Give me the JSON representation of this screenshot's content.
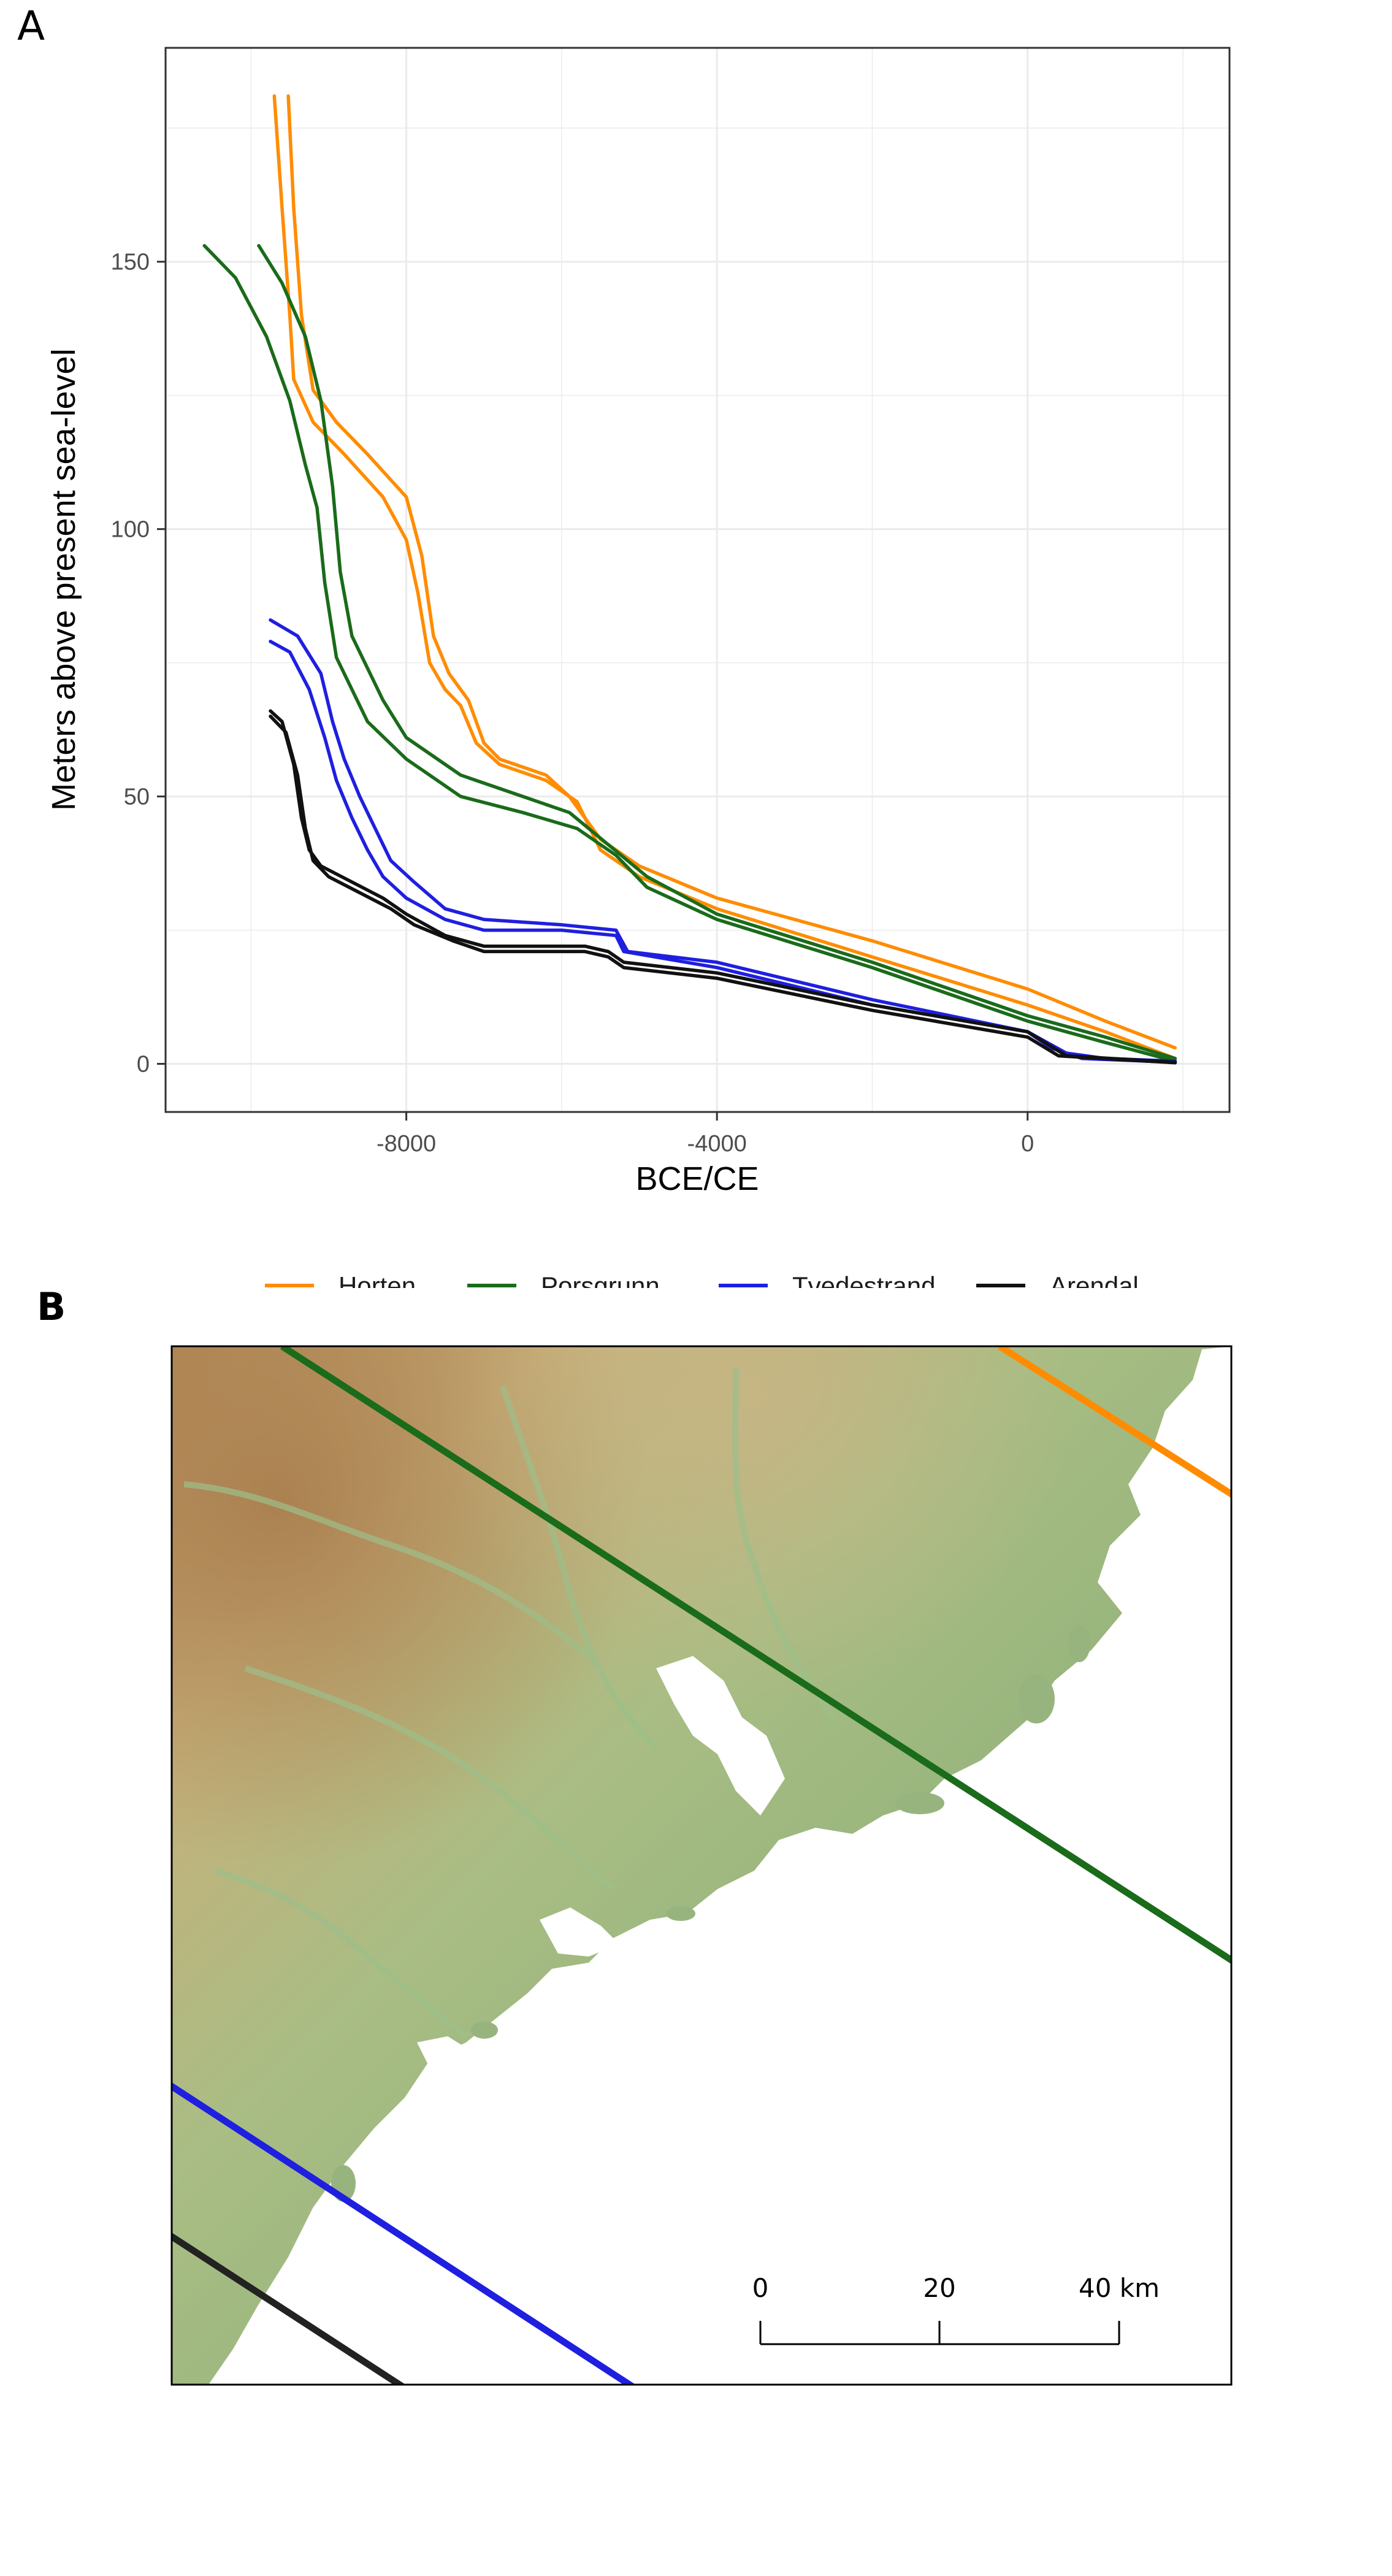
{
  "panels": {
    "a_label": "A",
    "b_label": "B"
  },
  "chart_data": {
    "type": "line",
    "title": "",
    "xlabel": "BCE/CE",
    "ylabel": "Meters above present sea-level",
    "xlim": [
      -11100,
      2600
    ],
    "ylim": [
      -9,
      190
    ],
    "xticks": [
      -8000,
      -4000,
      0
    ],
    "yticks": [
      0,
      50,
      100,
      150
    ],
    "grid": true,
    "legend_position": "bottom",
    "series": [
      {
        "name": "Horten",
        "color": "#ff8c00",
        "lines": [
          [
            [
              -9700,
              181
            ],
            [
              -9600,
              160
            ],
            [
              -9500,
              140
            ],
            [
              -9450,
              128
            ],
            [
              -9200,
              120
            ],
            [
              -8800,
              114
            ],
            [
              -8300,
              106
            ],
            [
              -8000,
              98
            ],
            [
              -7850,
              88
            ],
            [
              -7700,
              75
            ],
            [
              -7500,
              70
            ],
            [
              -7300,
              67
            ],
            [
              -7100,
              60
            ],
            [
              -6800,
              56
            ],
            [
              -6200,
              53
            ],
            [
              -5800,
              49
            ],
            [
              -5500,
              40
            ],
            [
              -5000,
              35
            ],
            [
              -4000,
              29
            ],
            [
              -2000,
              20
            ],
            [
              0,
              11
            ],
            [
              1000,
              6
            ],
            [
              1900,
              1
            ]
          ],
          [
            [
              -9520,
              181
            ],
            [
              -9450,
              160
            ],
            [
              -9350,
              140
            ],
            [
              -9200,
              126
            ],
            [
              -8900,
              120
            ],
            [
              -8500,
              114
            ],
            [
              -8000,
              106
            ],
            [
              -7800,
              95
            ],
            [
              -7650,
              80
            ],
            [
              -7450,
              73
            ],
            [
              -7200,
              68
            ],
            [
              -7000,
              60
            ],
            [
              -6800,
              57
            ],
            [
              -6200,
              54
            ],
            [
              -5900,
              50
            ],
            [
              -5500,
              42
            ],
            [
              -5000,
              37
            ],
            [
              -4000,
              31
            ],
            [
              -2000,
              23
            ],
            [
              0,
              14
            ],
            [
              1000,
              8
            ],
            [
              1900,
              3
            ]
          ]
        ]
      },
      {
        "name": "Porsgrunn",
        "color": "#1a6b1a",
        "lines": [
          [
            [
              -10600,
              153
            ],
            [
              -10200,
              147
            ],
            [
              -9800,
              136
            ],
            [
              -9500,
              124
            ],
            [
              -9300,
              112
            ],
            [
              -9150,
              104
            ],
            [
              -9050,
              90
            ],
            [
              -8900,
              76
            ],
            [
              -8500,
              64
            ],
            [
              -8000,
              57
            ],
            [
              -7300,
              50
            ],
            [
              -6500,
              47
            ],
            [
              -5800,
              44
            ],
            [
              -5300,
              39
            ],
            [
              -4900,
              33
            ],
            [
              -4000,
              27
            ],
            [
              -2000,
              18
            ],
            [
              0,
              8
            ],
            [
              1000,
              4
            ],
            [
              1900,
              0.5
            ]
          ],
          [
            [
              -9900,
              153
            ],
            [
              -9600,
              146
            ],
            [
              -9300,
              136
            ],
            [
              -9100,
              124
            ],
            [
              -8950,
              108
            ],
            [
              -8850,
              92
            ],
            [
              -8700,
              80
            ],
            [
              -8300,
              68
            ],
            [
              -8000,
              61
            ],
            [
              -7300,
              54
            ],
            [
              -6500,
              50
            ],
            [
              -5900,
              47
            ],
            [
              -5400,
              41
            ],
            [
              -4900,
              35
            ],
            [
              -4000,
              28
            ],
            [
              -2000,
              19
            ],
            [
              0,
              9
            ],
            [
              1000,
              5
            ],
            [
              1900,
              1
            ]
          ]
        ]
      },
      {
        "name": "Tvedestrand",
        "color": "#1f1fe0",
        "lines": [
          [
            [
              -9750,
              83
            ],
            [
              -9400,
              80
            ],
            [
              -9100,
              73
            ],
            [
              -8950,
              64
            ],
            [
              -8800,
              57
            ],
            [
              -8600,
              50
            ],
            [
              -8400,
              44
            ],
            [
              -8200,
              38
            ],
            [
              -7900,
              34
            ],
            [
              -7500,
              29
            ],
            [
              -7000,
              27
            ],
            [
              -6000,
              26
            ],
            [
              -5300,
              25
            ],
            [
              -5150,
              21
            ],
            [
              -4000,
              19
            ],
            [
              -2000,
              12
            ],
            [
              0,
              6
            ],
            [
              500,
              2
            ],
            [
              1000,
              1
            ],
            [
              1900,
              0.5
            ]
          ],
          [
            [
              -9750,
              79
            ],
            [
              -9500,
              77
            ],
            [
              -9250,
              70
            ],
            [
              -9050,
              61
            ],
            [
              -8900,
              53
            ],
            [
              -8700,
              46
            ],
            [
              -8500,
              40
            ],
            [
              -8300,
              35
            ],
            [
              -8000,
              31
            ],
            [
              -7500,
              27
            ],
            [
              -7000,
              25
            ],
            [
              -6000,
              25
            ],
            [
              -5300,
              24
            ],
            [
              -5200,
              21
            ],
            [
              -4000,
              18
            ],
            [
              -2000,
              11
            ],
            [
              0,
              6
            ],
            [
              300,
              3
            ],
            [
              700,
              1
            ],
            [
              1900,
              0.3
            ]
          ]
        ]
      },
      {
        "name": "Arendal",
        "color": "#111111",
        "lines": [
          [
            [
              -9750,
              66
            ],
            [
              -9600,
              64
            ],
            [
              -9450,
              56
            ],
            [
              -9350,
              46
            ],
            [
              -9250,
              40
            ],
            [
              -9100,
              37
            ],
            [
              -8700,
              34
            ],
            [
              -8300,
              31
            ],
            [
              -8000,
              28
            ],
            [
              -7500,
              24
            ],
            [
              -7000,
              22
            ],
            [
              -5700,
              22
            ],
            [
              -5400,
              21
            ],
            [
              -5200,
              19
            ],
            [
              -4000,
              17
            ],
            [
              -2000,
              11
            ],
            [
              0,
              6
            ],
            [
              500,
              1.5
            ],
            [
              1900,
              0.3
            ]
          ],
          [
            [
              -9750,
              65
            ],
            [
              -9550,
              62
            ],
            [
              -9400,
              54
            ],
            [
              -9300,
              44
            ],
            [
              -9200,
              38
            ],
            [
              -9000,
              35
            ],
            [
              -8600,
              32
            ],
            [
              -8200,
              29
            ],
            [
              -7900,
              26
            ],
            [
              -7400,
              23
            ],
            [
              -7000,
              21
            ],
            [
              -5700,
              21
            ],
            [
              -5400,
              20
            ],
            [
              -5200,
              18
            ],
            [
              -4000,
              16
            ],
            [
              -2000,
              10
            ],
            [
              0,
              5
            ],
            [
              400,
              1.5
            ],
            [
              1900,
              0.2
            ]
          ]
        ]
      }
    ]
  },
  "legend": [
    {
      "label": "Horten",
      "color": "#ff8c00"
    },
    {
      "label": "Porsgrunn",
      "color": "#1a6b1a"
    },
    {
      "label": "Tvedestrand",
      "color": "#1f1fe0"
    },
    {
      "label": "Arendal",
      "color": "#111111"
    }
  ],
  "map": {
    "scale_bar": {
      "labels": [
        "0",
        "20",
        "40 km"
      ]
    },
    "colors": {
      "lowland": "#8fb27a",
      "midland": "#c6c08a",
      "highland": "#b68c5a",
      "sea": "#ffffff"
    }
  }
}
